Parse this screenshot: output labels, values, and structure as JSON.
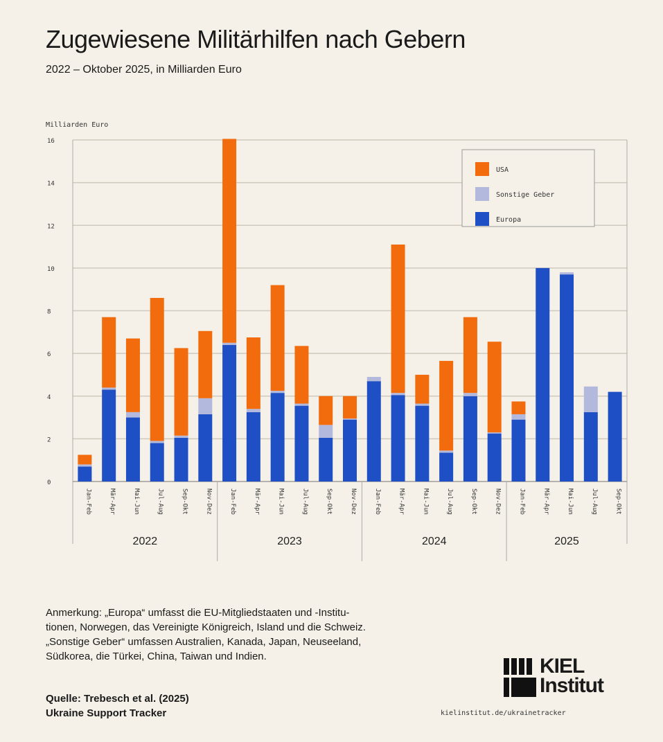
{
  "title": "Zugewiesene Militärhilfen nach Gebern",
  "subtitle": "2022 – Oktober 2025, in Milliarden Euro",
  "chart_data": {
    "type": "bar",
    "stacked": true,
    "ylabel": "Milliarden Euro",
    "ylim": [
      0,
      16
    ],
    "yticks": [
      0,
      2,
      4,
      6,
      8,
      10,
      12,
      14,
      16
    ],
    "grid": true,
    "legend_position": "top-right",
    "years": [
      "2022",
      "2023",
      "2024",
      "2025"
    ],
    "categories": [
      "Jan-Feb",
      "Mär-Apr",
      "Mai-Jun",
      "Jul-Aug",
      "Sep-Okt",
      "Nov-Dez",
      "Jan-Feb",
      "Mär-Apr",
      "Mai-Jun",
      "Jul-Aug",
      "Sep-Okt",
      "Nov-Dez",
      "Jan-Feb",
      "Mär-Apr",
      "Mai-Jun",
      "Jul-Aug",
      "Sep-Okt",
      "Nov-Dez",
      "Jan-Feb",
      "Mär-Apr",
      "Mai-Jun",
      "Jul-Aug",
      "Sep-Okt"
    ],
    "category_year": [
      0,
      0,
      0,
      0,
      0,
      0,
      1,
      1,
      1,
      1,
      1,
      1,
      2,
      2,
      2,
      2,
      2,
      2,
      3,
      3,
      3,
      3,
      3
    ],
    "series": [
      {
        "name": "Europa",
        "color": "#1f4fc4",
        "values": [
          0.7,
          4.3,
          3.0,
          1.8,
          2.05,
          3.15,
          6.4,
          3.25,
          4.15,
          3.55,
          2.05,
          2.9,
          4.7,
          4.05,
          3.55,
          1.35,
          4.0,
          2.25,
          2.9,
          10.0,
          9.7,
          3.25,
          4.2
        ]
      },
      {
        "name": "Sonstige Geber",
        "color": "#b3b8dd",
        "values": [
          0.1,
          0.1,
          0.25,
          0.1,
          0.1,
          0.75,
          0.1,
          0.15,
          0.1,
          0.1,
          0.6,
          0.05,
          0.2,
          0.1,
          0.1,
          0.1,
          0.15,
          0.05,
          0.25,
          0.0,
          0.1,
          1.2,
          0.0
        ]
      },
      {
        "name": "USA",
        "color": "#f26c0d",
        "values": [
          0.45,
          3.3,
          3.45,
          6.7,
          4.1,
          3.15,
          9.55,
          3.35,
          4.95,
          2.7,
          1.35,
          1.05,
          0.0,
          6.95,
          1.35,
          4.2,
          3.55,
          4.25,
          0.6,
          0.0,
          0.0,
          0.0,
          0.0
        ]
      }
    ],
    "legend_order": [
      "USA",
      "Sonstige Geber",
      "Europa"
    ]
  },
  "note": [
    "Anmerkung: „Europa“ umfasst die EU-Mitgliedstaaten und -Institu-",
    "tionen, Norwegen, das Vereinigte Königreich, Island und die Schweiz.",
    "„Sonstige Geber“ umfassen Australien, Kanada, Japan, Neuseeland,",
    "Südkorea, die Türkei, China, Taiwan und Indien."
  ],
  "source": [
    "Quelle: Trebesch et al. (2025)",
    "Ukraine Support Tracker"
  ],
  "logo": {
    "line1": "KIEL",
    "line2": "Institut"
  },
  "url": "kielinstitut.de/ukrainetracker"
}
